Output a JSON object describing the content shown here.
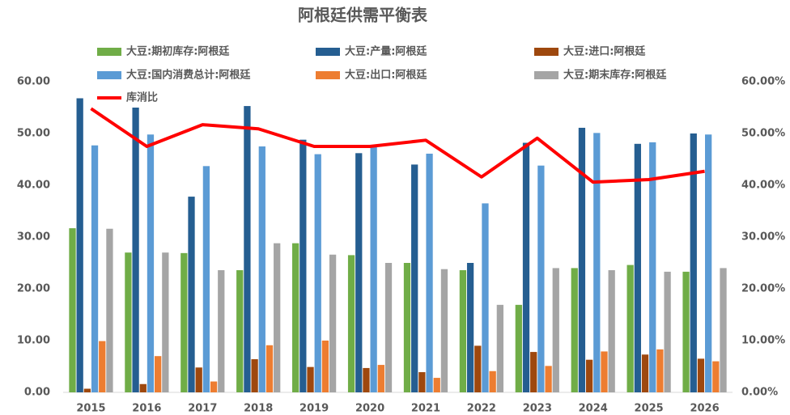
{
  "chart_data": {
    "type": "bar",
    "title": "阿根廷供需平衡表",
    "categories": [
      "2015",
      "2016",
      "2017",
      "2018",
      "2019",
      "2020",
      "2021",
      "2022",
      "2023",
      "2024",
      "2025",
      "2026"
    ],
    "series": [
      {
        "name": "大豆:期初库存:阿根廷",
        "color": "#70ad47",
        "values": [
          31.7,
          27.0,
          26.9,
          23.6,
          28.8,
          26.5,
          25.0,
          23.6,
          16.9,
          24.0,
          24.6,
          23.3
        ]
      },
      {
        "name": "大豆:产量:阿根廷",
        "color": "#255e91",
        "values": [
          56.8,
          55.0,
          37.8,
          55.3,
          48.8,
          46.2,
          44.0,
          25.0,
          48.2,
          51.1,
          48.0,
          50.0
        ]
      },
      {
        "name": "大豆:进口:阿根廷",
        "color": "#9e480e",
        "values": [
          0.7,
          1.6,
          4.8,
          6.4,
          4.9,
          4.7,
          3.9,
          9.0,
          7.8,
          6.3,
          7.3,
          6.5
        ]
      },
      {
        "name": "大豆:国内消费总计:阿根廷",
        "color": "#5b9bd5",
        "values": [
          47.7,
          49.8,
          43.7,
          47.5,
          46.0,
          47.8,
          46.1,
          36.5,
          43.8,
          50.1,
          48.3,
          49.8
        ]
      },
      {
        "name": "大豆:出口:阿根廷",
        "color": "#ed7d31",
        "values": [
          9.9,
          7.0,
          2.1,
          9.1,
          10.0,
          5.3,
          2.8,
          4.1,
          5.1,
          7.9,
          8.3,
          6.0
        ]
      },
      {
        "name": "大豆:期末库存:阿根廷",
        "color": "#a5a5a5",
        "values": [
          31.6,
          27.0,
          23.6,
          28.8,
          26.6,
          25.0,
          23.8,
          16.9,
          24.0,
          23.6,
          23.3,
          24.0
        ]
      },
      {
        "name": "库消比",
        "type": "line",
        "axis": "y2",
        "color": "#ff0000",
        "values": [
          54.8,
          47.5,
          51.7,
          50.9,
          47.5,
          47.5,
          48.7,
          41.6,
          49.1,
          40.6,
          41.1,
          42.7
        ]
      }
    ],
    "ylim": [
      0,
      60
    ],
    "yticks": [
      {
        "value": 0,
        "label": "0.00"
      },
      {
        "value": 10,
        "label": "10.00"
      },
      {
        "value": 20,
        "label": "20.00"
      },
      {
        "value": 30,
        "label": "30.00"
      },
      {
        "value": 40,
        "label": "40.00"
      },
      {
        "value": 50,
        "label": "50.00"
      },
      {
        "value": 60,
        "label": "60.00"
      }
    ],
    "y2lim": [
      0,
      60
    ],
    "y2ticks": [
      {
        "value": 0,
        "label": "0.00%"
      },
      {
        "value": 10,
        "label": "10.00%"
      },
      {
        "value": 20,
        "label": "20.00%"
      },
      {
        "value": 30,
        "label": "30.00%"
      },
      {
        "value": 40,
        "label": "40.00%"
      },
      {
        "value": 50,
        "label": "50.00%"
      },
      {
        "value": 60,
        "label": "60.00%"
      }
    ],
    "grid": false
  }
}
